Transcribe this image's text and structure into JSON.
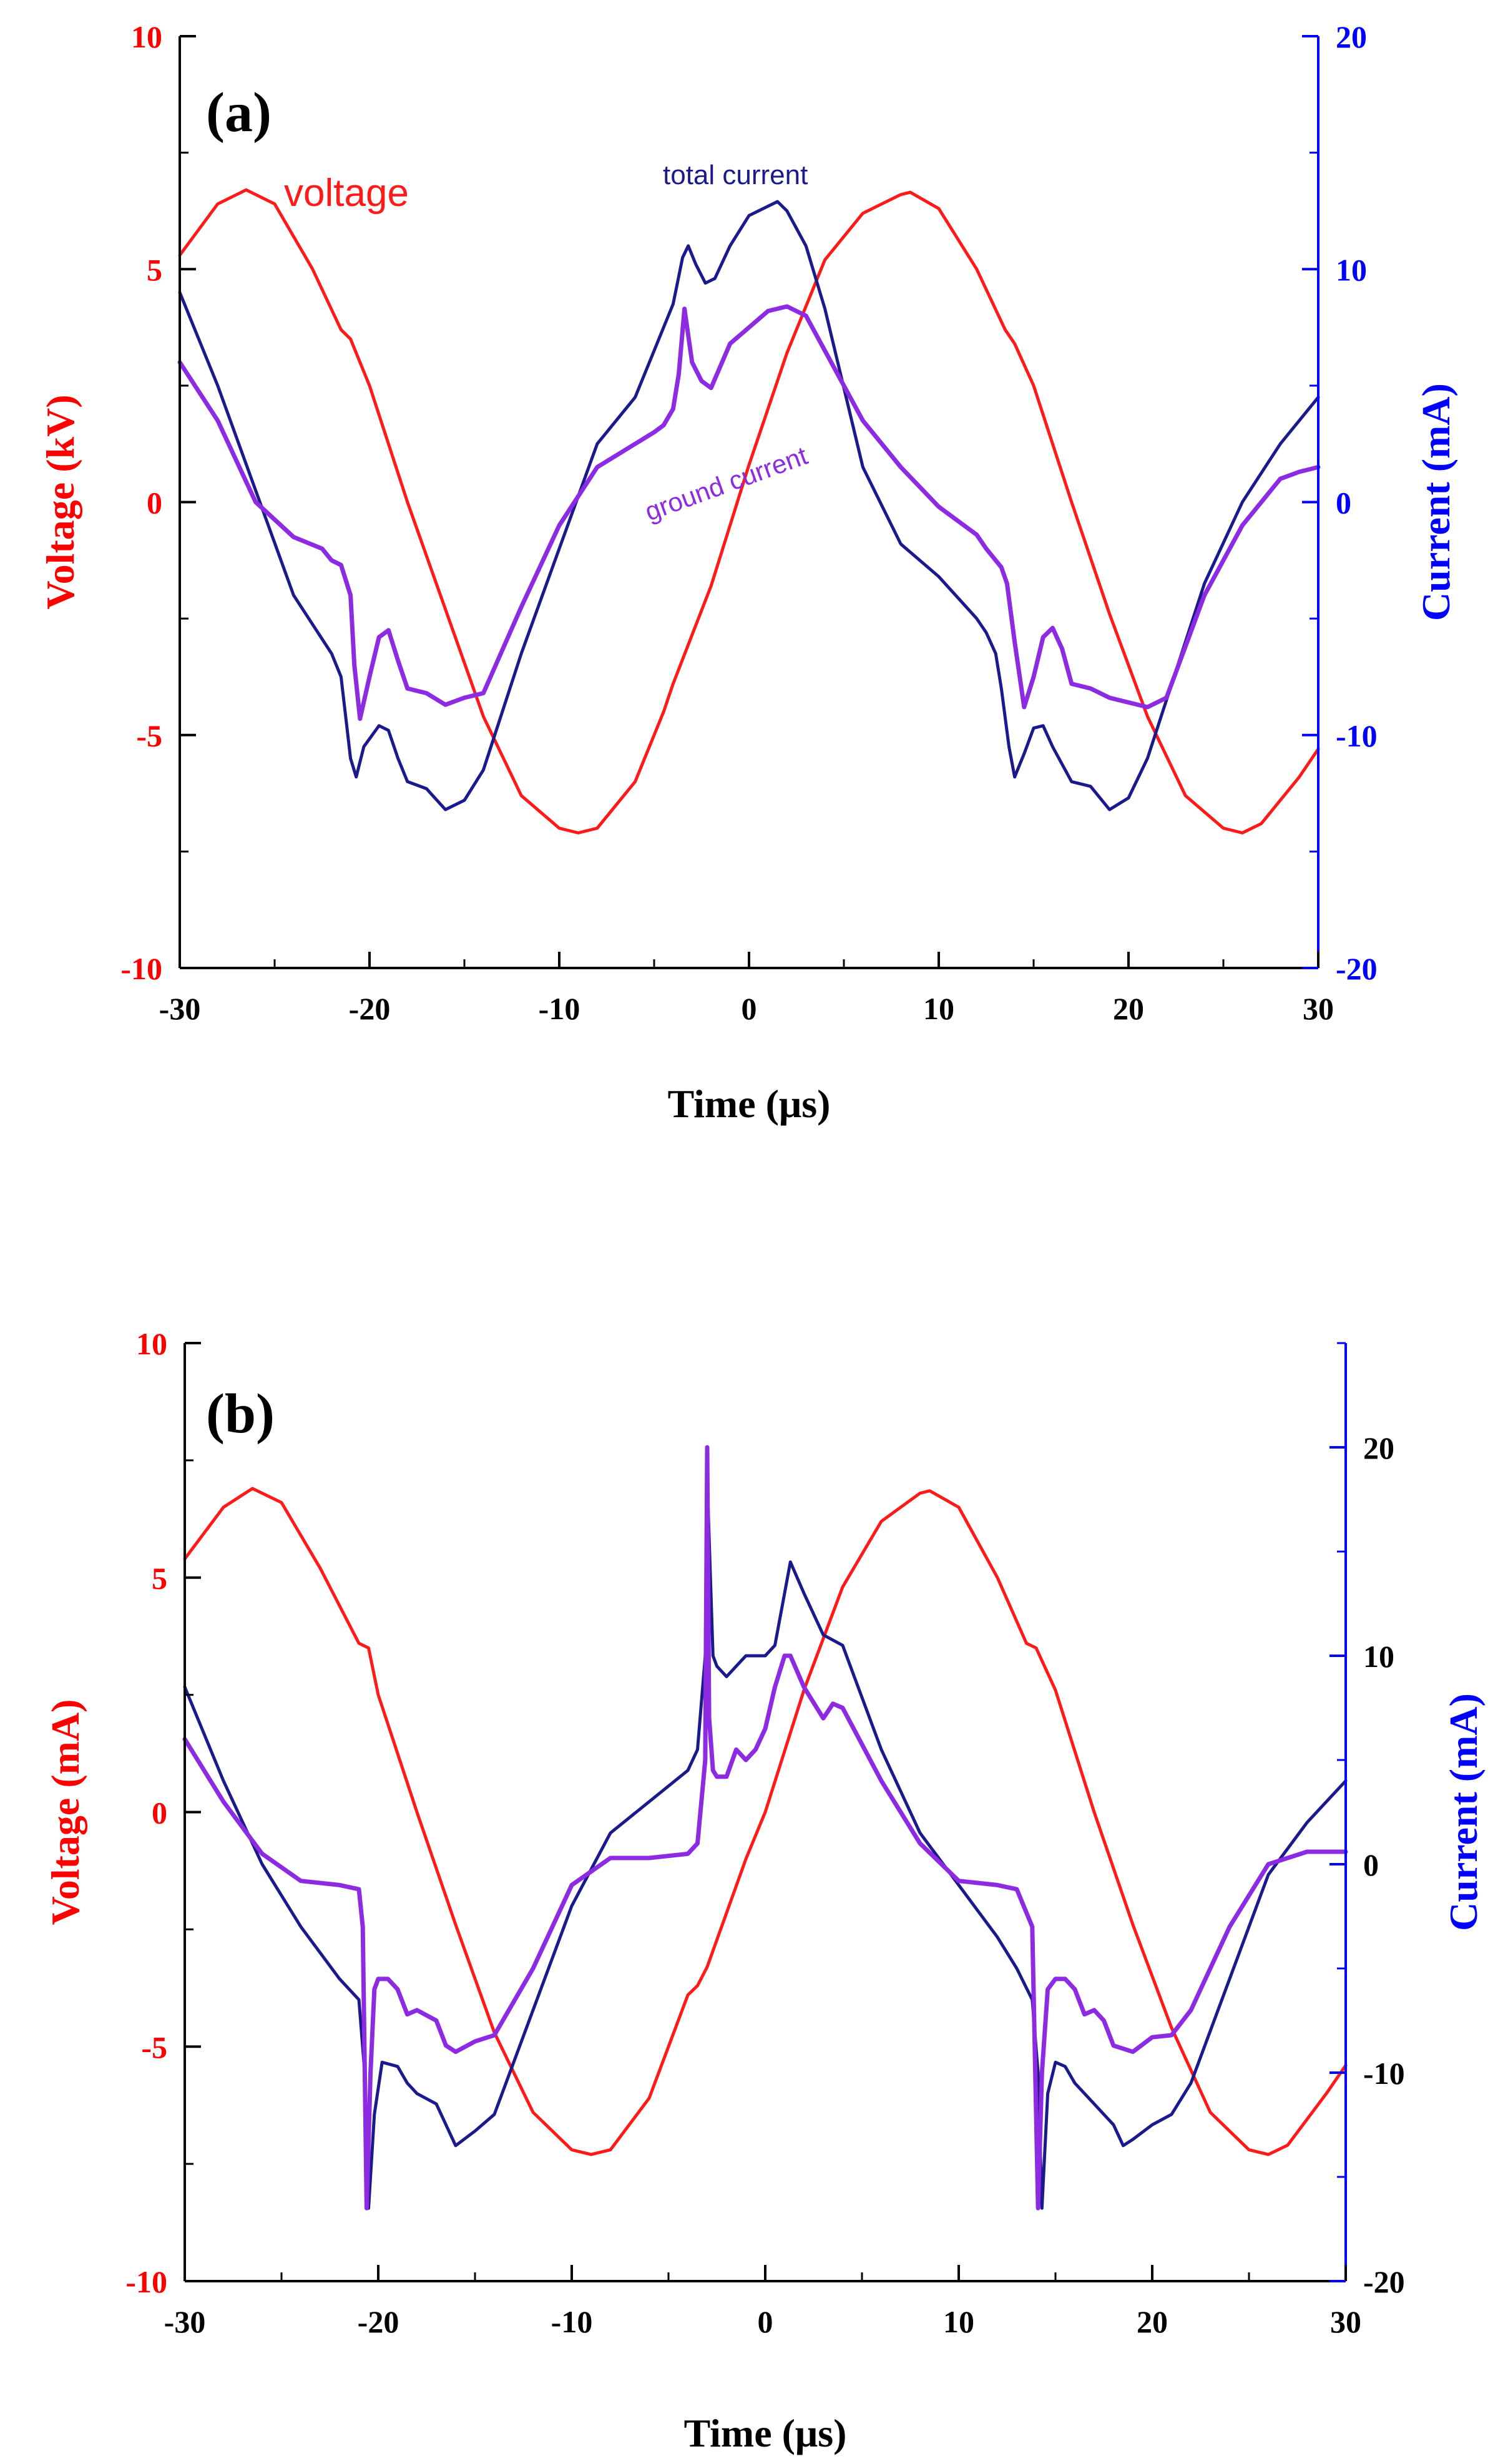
{
  "colors": {
    "voltage": "#ff1a1a",
    "total_current": "#1a1a8c",
    "ground_current": "#8c2be2",
    "left_axis": "#ff0000",
    "right_axis": "#0000ff",
    "axis_black": "#000000"
  },
  "chart_data": [
    {
      "type": "line",
      "panel_label": "(a)",
      "xlabel": "Time (μs)",
      "ylabel_left": "Voltage (kV)",
      "ylabel_right": "Current (mA)",
      "xlim": [
        -30,
        30
      ],
      "ylim_left": [
        -10,
        10
      ],
      "ylim_right": [
        -20,
        20
      ],
      "x_ticks": [
        "-30",
        "-20",
        "-10",
        "0",
        "10",
        "20",
        "30"
      ],
      "y_left_ticks": [
        "-10",
        "-5",
        "0",
        "5",
        "10"
      ],
      "y_right_ticks": [
        "-20",
        "-10",
        "0",
        "10",
        "20"
      ],
      "right_axis_tick_color": "#0000ff",
      "annotations": [
        {
          "text": "voltage",
          "series": "voltage"
        },
        {
          "text": "total current",
          "series": "total_current"
        },
        {
          "text": "ground current",
          "series": "ground_current",
          "rotated": true
        }
      ],
      "series": [
        {
          "name": "voltage",
          "axis": "left",
          "color": "#ff1a1a",
          "x": [
            -30,
            -28,
            -26.5,
            -25,
            -23,
            -21.5,
            -21,
            -20,
            -18,
            -16,
            -14,
            -12,
            -10,
            -9,
            -8,
            -6,
            -4.5,
            -4,
            -2,
            0,
            2,
            4,
            6,
            8,
            8.5,
            10,
            12,
            13.5,
            14,
            15,
            17,
            19,
            21,
            23,
            25,
            26,
            27,
            29,
            30
          ],
          "values": [
            5.3,
            6.4,
            6.7,
            6.4,
            5.0,
            3.7,
            3.5,
            2.5,
            0,
            -2.3,
            -4.6,
            -6.3,
            -7.0,
            -7.1,
            -7.0,
            -6.0,
            -4.5,
            -3.9,
            -1.8,
            0.8,
            3.2,
            5.2,
            6.2,
            6.6,
            6.65,
            6.3,
            5.0,
            3.7,
            3.4,
            2.5,
            0,
            -2.4,
            -4.6,
            -6.3,
            -7.0,
            -7.1,
            -6.9,
            -5.9,
            -5.3
          ]
        },
        {
          "name": "total_current",
          "axis": "right",
          "color": "#1a1a8c",
          "x": [
            -30,
            -28,
            -26,
            -24,
            -22,
            -21.5,
            -21,
            -20.7,
            -20.3,
            -19.5,
            -19,
            -18.5,
            -18,
            -17,
            -16,
            -15,
            -14,
            -12,
            -10,
            -8,
            -6,
            -4,
            -3.5,
            -3.2,
            -2.8,
            -2.3,
            -1.8,
            -1,
            0,
            1.5,
            2,
            3,
            4,
            6,
            8,
            10,
            12,
            12.5,
            13,
            13.3,
            13.7,
            14,
            14.5,
            15,
            15.5,
            16,
            17,
            18,
            19,
            20,
            21,
            22,
            24,
            26,
            28,
            30
          ],
          "values": [
            9,
            5,
            0.5,
            -4,
            -6.5,
            -7.5,
            -11,
            -11.8,
            -10.5,
            -9.6,
            -9.8,
            -11,
            -12,
            -12.3,
            -13.2,
            -12.8,
            -11.5,
            -6.5,
            -2,
            2.5,
            4.5,
            8.5,
            10.5,
            11,
            10.2,
            9.4,
            9.6,
            11,
            12.3,
            12.9,
            12.5,
            11,
            8.3,
            1.5,
            -1.8,
            -3.2,
            -5,
            -5.6,
            -6.5,
            -8,
            -10.5,
            -11.8,
            -10.8,
            -9.7,
            -9.6,
            -10.5,
            -12,
            -12.2,
            -13.2,
            -12.7,
            -11,
            -8.5,
            -3.5,
            0,
            2.5,
            4.5
          ]
        },
        {
          "name": "ground_current",
          "axis": "right",
          "color": "#8c2be2",
          "x": [
            -30,
            -28,
            -26,
            -24,
            -22.5,
            -22,
            -21.5,
            -21,
            -20.8,
            -20.5,
            -20,
            -19.5,
            -19,
            -18.5,
            -18,
            -17,
            -16,
            -15,
            -14,
            -12,
            -10,
            -8,
            -6,
            -5,
            -4.5,
            -4,
            -3.7,
            -3.4,
            -3,
            -2.5,
            -2,
            -1,
            0,
            1,
            2,
            3,
            4,
            6,
            8,
            10,
            12,
            12.5,
            13,
            13.3,
            13.6,
            14,
            14.5,
            15,
            15.5,
            16,
            16.5,
            17,
            18,
            19,
            20,
            21,
            22,
            24,
            26,
            28,
            29,
            30
          ],
          "values": [
            6,
            3.5,
            0,
            -1.5,
            -2,
            -2.5,
            -2.7,
            -4,
            -7,
            -9.3,
            -7.5,
            -5.8,
            -5.5,
            -6.8,
            -8,
            -8.2,
            -8.7,
            -8.4,
            -8.2,
            -4.5,
            -1,
            1.5,
            2.5,
            3,
            3.3,
            4,
            5.5,
            8.3,
            6,
            5.2,
            4.9,
            6.8,
            7.5,
            8.2,
            8.4,
            8,
            6.5,
            3.5,
            1.5,
            -0.2,
            -1.4,
            -2,
            -2.5,
            -2.8,
            -3.5,
            -6,
            -8.8,
            -7.5,
            -5.8,
            -5.4,
            -6.3,
            -7.8,
            -8,
            -8.4,
            -8.6,
            -8.8,
            -8.4,
            -4,
            -1,
            1,
            1.3,
            1.5
          ]
        }
      ]
    },
    {
      "type": "line",
      "panel_label": "(b)",
      "xlabel": "Time (μs)",
      "ylabel_left": "Voltage (mA)",
      "ylabel_right": "Current (mA)",
      "xlim": [
        -30,
        30
      ],
      "ylim_left": [
        -10,
        10
      ],
      "ylim_right": [
        -20,
        25
      ],
      "x_ticks": [
        "-30",
        "-20",
        "-10",
        "0",
        "10",
        "20",
        "30"
      ],
      "y_left_ticks": [
        "-10",
        "-5",
        "0",
        "5",
        "10"
      ],
      "y_right_ticks": [
        "-20",
        "-10",
        "0",
        "10",
        "20"
      ],
      "right_axis_tick_color": "#000000",
      "annotations": [],
      "series": [
        {
          "name": "voltage",
          "axis": "left",
          "color": "#ff1a1a",
          "x": [
            -30,
            -28,
            -26.5,
            -25,
            -23,
            -21,
            -20.5,
            -20,
            -18,
            -16,
            -14,
            -12,
            -10,
            -9,
            -8,
            -6,
            -4,
            -3.5,
            -3,
            -1,
            0,
            2,
            4,
            6,
            8,
            8.5,
            10,
            12,
            13.5,
            14,
            15,
            17,
            19,
            21,
            23,
            25,
            26,
            27,
            29,
            30
          ],
          "values": [
            5.4,
            6.5,
            6.9,
            6.6,
            5.2,
            3.6,
            3.5,
            2.5,
            0,
            -2.4,
            -4.7,
            -6.4,
            -7.2,
            -7.3,
            -7.2,
            -6.1,
            -3.9,
            -3.7,
            -3.3,
            -1.0,
            0.0,
            2.6,
            4.8,
            6.2,
            6.8,
            6.85,
            6.5,
            5.0,
            3.6,
            3.5,
            2.6,
            0,
            -2.4,
            -4.6,
            -6.4,
            -7.2,
            -7.3,
            -7.1,
            -6.0,
            -5.4
          ]
        },
        {
          "name": "total_current",
          "axis": "right",
          "color": "#1a1a8c",
          "x": [
            -30,
            -28,
            -26,
            -24,
            -22,
            -21,
            -20.7,
            -20.5,
            -20.2,
            -19.8,
            -19,
            -18.5,
            -18,
            -17,
            -16.5,
            -16,
            -15,
            -14,
            -12,
            -10,
            -8,
            -6,
            -4,
            -3.5,
            -3.1,
            -3,
            -2.7,
            -2.5,
            -2,
            -1,
            0,
            0.5,
            1,
            1.3,
            2,
            3,
            4,
            6,
            8,
            10,
            12,
            13,
            13.8,
            14.1,
            14.3,
            14.6,
            15,
            15.5,
            16,
            17,
            18,
            18.5,
            19,
            20,
            21,
            22,
            24,
            26,
            28,
            30
          ],
          "values": [
            8.5,
            4,
            0,
            -3,
            -5.5,
            -6.5,
            -10,
            -16.5,
            -12,
            -9.5,
            -9.7,
            -10.5,
            -11,
            -11.5,
            -12.5,
            -13.5,
            -12.8,
            -12,
            -7,
            -2,
            1.5,
            3,
            4.5,
            5.5,
            10,
            18.5,
            10,
            9.5,
            9,
            10,
            10,
            10.5,
            13,
            14.5,
            13,
            11,
            10.5,
            5.5,
            1.5,
            -1,
            -3.5,
            -5,
            -6.5,
            -10,
            -16.5,
            -11,
            -9.5,
            -9.7,
            -10.5,
            -11.5,
            -12.5,
            -13.5,
            -13.2,
            -12.5,
            -12,
            -10.5,
            -5.5,
            -0.5,
            2,
            4
          ]
        },
        {
          "name": "ground_current",
          "axis": "right",
          "color": "#8c2be2",
          "x": [
            -30,
            -28,
            -26,
            -24,
            -22,
            -21,
            -20.8,
            -20.6,
            -20.4,
            -20.2,
            -20,
            -19.5,
            -19,
            -18.5,
            -18,
            -17,
            -16.5,
            -16,
            -15,
            -14,
            -12,
            -10,
            -8,
            -6,
            -4,
            -3.5,
            -3.1,
            -3,
            -2.9,
            -2.7,
            -2.5,
            -2,
            -1.5,
            -1,
            -0.5,
            0,
            0.5,
            1,
            1.3,
            2,
            3,
            3.5,
            4,
            6,
            8,
            10,
            12,
            13,
            13.8,
            14.1,
            14.3,
            14.6,
            15,
            15.5,
            16,
            16.5,
            17,
            17.5,
            18,
            19,
            20,
            21,
            22,
            24,
            26,
            28,
            30
          ],
          "values": [
            6,
            3,
            0.5,
            -0.8,
            -1,
            -1.2,
            -3,
            -16.5,
            -10,
            -6,
            -5.5,
            -5.5,
            -6,
            -7.2,
            -7,
            -7.5,
            -8.7,
            -9,
            -8.5,
            -8.2,
            -5,
            -1,
            0.3,
            0.3,
            0.5,
            1,
            5,
            20,
            7,
            4.5,
            4.2,
            4.2,
            5.5,
            5,
            5.5,
            6.5,
            8.5,
            10,
            10,
            8.5,
            7,
            7.7,
            7.5,
            4,
            1,
            -0.8,
            -1,
            -1.2,
            -3,
            -16.5,
            -10,
            -6,
            -5.5,
            -5.5,
            -6,
            -7.2,
            -7,
            -7.5,
            -8.7,
            -9,
            -8.3,
            -8.2,
            -7,
            -3,
            0,
            0.6,
            0.6
          ]
        }
      ]
    }
  ]
}
